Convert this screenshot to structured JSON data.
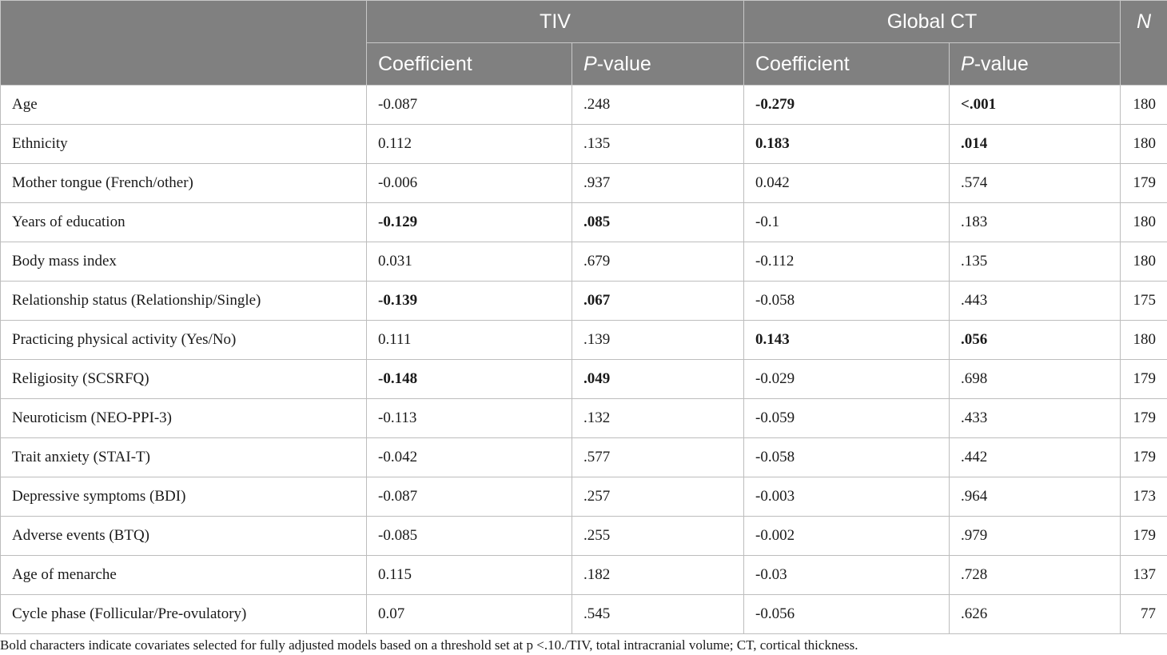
{
  "header": {
    "group1": "TIV",
    "group2": "Global CT",
    "n_label": "N",
    "coef_label": "Coefficient",
    "p_italic": "P",
    "p_rest": "-value"
  },
  "rows": [
    {
      "label": "Age",
      "tiv_coef": "-0.087",
      "tiv_p": ".248",
      "ct_coef": "-0.279",
      "ct_p": "<.001",
      "n": "180"
    },
    {
      "label": "Ethnicity",
      "tiv_coef": "0.112",
      "tiv_p": ".135",
      "ct_coef": "0.183",
      "ct_p": ".014",
      "n": "180"
    },
    {
      "label": "Mother tongue (French/other)",
      "tiv_coef": "-0.006",
      "tiv_p": ".937",
      "ct_coef": "0.042",
      "ct_p": ".574",
      "n": "179"
    },
    {
      "label": "Years of education",
      "tiv_coef": "-0.129",
      "tiv_p": ".085",
      "ct_coef": "-0.1",
      "ct_p": ".183",
      "n": "180"
    },
    {
      "label": "Body mass index",
      "tiv_coef": "0.031",
      "tiv_p": ".679",
      "ct_coef": "-0.112",
      "ct_p": ".135",
      "n": "180"
    },
    {
      "label": "Relationship status (Relationship/Single)",
      "tiv_coef": "-0.139",
      "tiv_p": ".067",
      "ct_coef": "-0.058",
      "ct_p": ".443",
      "n": "175"
    },
    {
      "label": "Practicing physical activity (Yes/No)",
      "tiv_coef": "0.111",
      "tiv_p": ".139",
      "ct_coef": "0.143",
      "ct_p": ".056",
      "n": "180"
    },
    {
      "label": "Religiosity (SCSRFQ)",
      "tiv_coef": "-0.148",
      "tiv_p": ".049",
      "ct_coef": "-0.029",
      "ct_p": ".698",
      "n": "179"
    },
    {
      "label": "Neuroticism (NEO-PPI-3)",
      "tiv_coef": "-0.113",
      "tiv_p": ".132",
      "ct_coef": "-0.059",
      "ct_p": ".433",
      "n": "179"
    },
    {
      "label": "Trait anxiety (STAI-T)",
      "tiv_coef": "-0.042",
      "tiv_p": ".577",
      "ct_coef": "-0.058",
      "ct_p": ".442",
      "n": "179"
    },
    {
      "label": "Depressive symptoms (BDI)",
      "tiv_coef": "-0.087",
      "tiv_p": ".257",
      "ct_coef": "-0.003",
      "ct_p": ".964",
      "n": "173"
    },
    {
      "label": "Adverse events (BTQ)",
      "tiv_coef": "-0.085",
      "tiv_p": ".255",
      "ct_coef": "-0.002",
      "ct_p": ".979",
      "n": "179"
    },
    {
      "label": "Age of menarche",
      "tiv_coef": "0.115",
      "tiv_p": ".182",
      "ct_coef": "-0.03",
      "ct_p": ".728",
      "n": "137"
    },
    {
      "label": "Cycle phase (Follicular/Pre-ovulatory)",
      "tiv_coef": "0.07",
      "tiv_p": ".545",
      "ct_coef": "-0.056",
      "ct_p": ".626",
      "n": "77"
    }
  ],
  "footnote": "Bold characters indicate covariates selected for fully adjusted models based on a threshold set at p <.10./TIV, total intracranial volume; CT, cortical thickness."
}
